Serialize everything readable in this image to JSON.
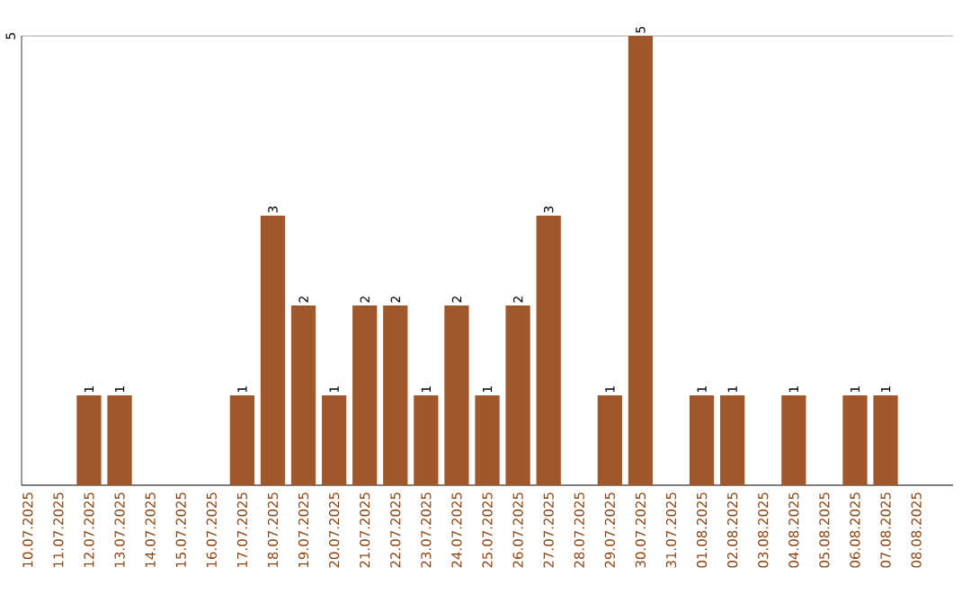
{
  "chart_data": {
    "type": "bar",
    "categories": [
      "10.07.2025",
      "11.07.2025",
      "12.07.2025",
      "13.07.2025",
      "14.07.2025",
      "15.07.2025",
      "16.07.2025",
      "17.07.2025",
      "18.07.2025",
      "19.07.2025",
      "20.07.2025",
      "21.07.2025",
      "22.07.2025",
      "23.07.2025",
      "24.07.2025",
      "25.07.2025",
      "26.07.2025",
      "27.07.2025",
      "28.07.2025",
      "29.07.2025",
      "30.07.2025",
      "31.07.2025",
      "01.08.2025",
      "02.08.2025",
      "03.08.2025",
      "04.08.2025",
      "05.08.2025",
      "06.08.2025",
      "07.08.2025",
      "08.08.2025"
    ],
    "values": [
      0,
      0,
      1,
      1,
      0,
      0,
      0,
      1,
      3,
      2,
      1,
      2,
      2,
      1,
      2,
      1,
      2,
      3,
      0,
      1,
      5,
      0,
      1,
      1,
      0,
      1,
      0,
      1,
      1,
      0
    ],
    "value_labels": [
      null,
      null,
      "1",
      "1",
      null,
      null,
      null,
      "1",
      "3",
      "2",
      "1",
      "2",
      "2",
      "1",
      "2",
      "1",
      "2",
      "3",
      null,
      "1",
      "5",
      null,
      "1",
      "1",
      null,
      "1",
      null,
      "1",
      "1",
      null
    ],
    "color": "#a0572a",
    "ylim": [
      0,
      5
    ],
    "yticks": [
      {
        "value": 0,
        "label": null
      },
      5
    ],
    "grid": "y"
  }
}
